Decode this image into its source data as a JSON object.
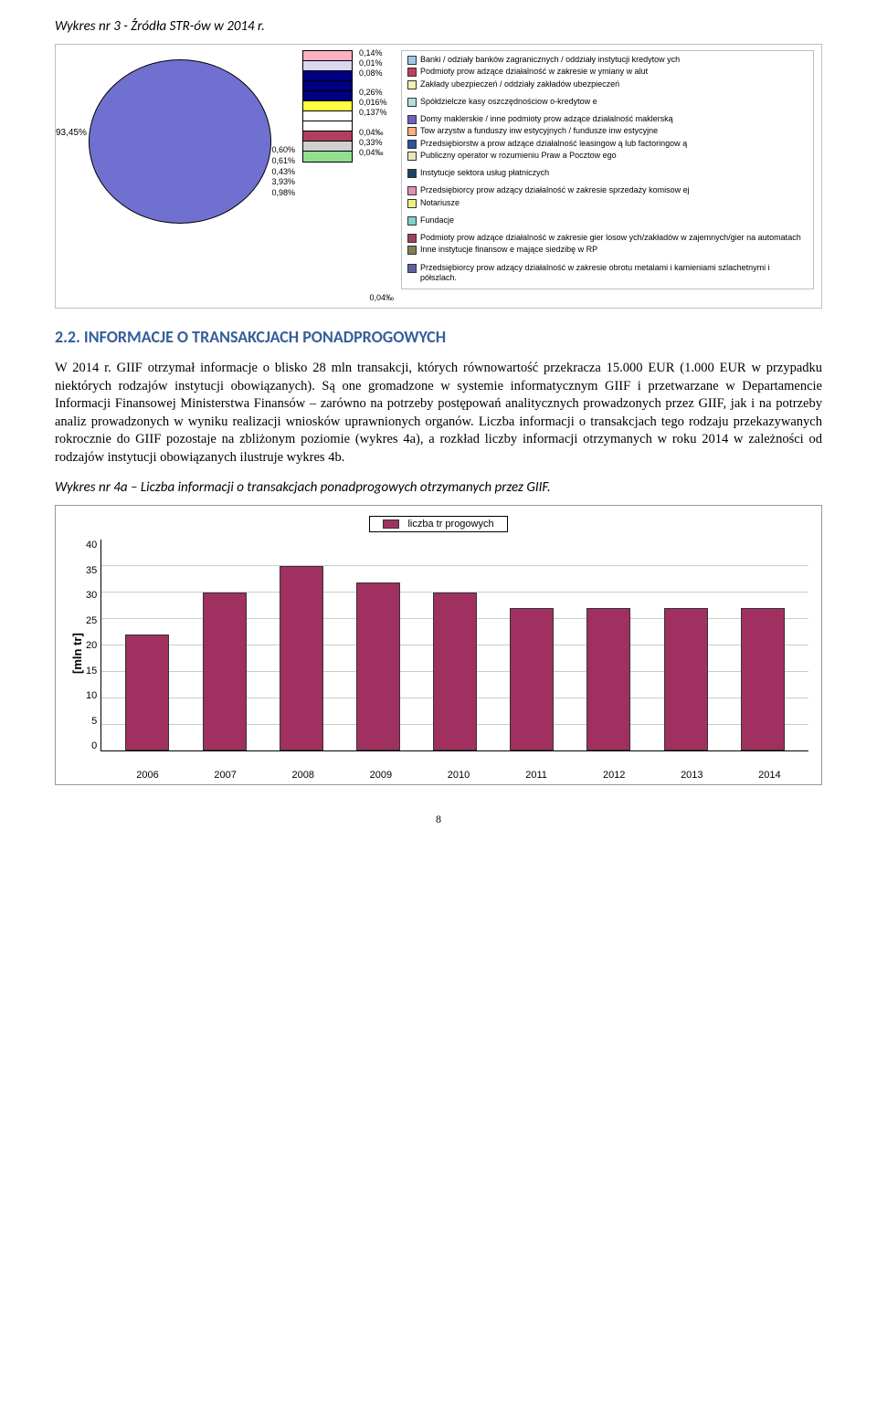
{
  "page_number": "8",
  "chart3": {
    "title": "Wykres nr 3 - Źródła STR-ów w 2014 r.",
    "type": "pie",
    "main_slice_label": "93,45%",
    "main_color": "#7070d0",
    "slice_labels": {
      "l0": "0,60%",
      "l1": "0,61%",
      "l2": "0,43%",
      "l3": "3,93%",
      "l4": "0,98%"
    },
    "callout_labels": {
      "c0": "0,14%",
      "c1": "0,01%",
      "c2": "0,08%",
      "c3": "",
      "c4": "0,26%",
      "c5": "0,016%",
      "c6": "0,137%",
      "c7": "",
      "c8": "0,04‰",
      "c9": "0,33%",
      "c10": "0,04‰"
    },
    "callout_colors": [
      "#ffb0c0",
      "#d8d8f0",
      "#000080",
      "#000080",
      "#000080",
      "#ffff40",
      "#ffffff",
      "#ffffff",
      "#b04060",
      "#d0d0d0",
      "#90e090"
    ],
    "bottom_label": "0,04‰",
    "legend_items": [
      {
        "color": "#a0c8e8",
        "text": "Banki / odziały banków zagranicznych / oddziały instytucji kredytow ych"
      },
      {
        "color": "#c04060",
        "text": "Podmioty prow adzące działalność w zakresie w ymiany w alut"
      },
      {
        "color": "#f0f0b0",
        "text": "Zakłady ubezpieczeń / oddziały zakładów ubezpieczeń"
      },
      {
        "color": "#ffffff",
        "text": ""
      },
      {
        "color": "#b0e0e0",
        "text": "Spółdzielcze kasy oszczędnościow o-kredytow e"
      },
      {
        "color": "#ffffff",
        "text": ""
      },
      {
        "color": "#7060c0",
        "text": "Domy maklerskie / inne podmioty prow adzące działalność maklerską"
      },
      {
        "color": "#ffb080",
        "text": "Tow arzystw a funduszy inw estycyjnych / fundusze inw estycyjne"
      },
      {
        "color": "#3050a0",
        "text": "Przedsiębiorstw a prow adzące działalność leasingow ą lub factoringow ą"
      },
      {
        "color": "#e8e8c0",
        "text": "Publiczny operator w rozumieniu Praw a Pocztow ego"
      },
      {
        "color": "#ffffff",
        "text": ""
      },
      {
        "color": "#204060",
        "text": "Instytucje sektora usług płatniczych"
      },
      {
        "color": "#ffffff",
        "text": ""
      },
      {
        "color": "#e090b0",
        "text": "Przedsiębiorcy prow adzący działalność w zakresie sprzedaży komisow ej"
      },
      {
        "color": "#f0f080",
        "text": "Notariusze"
      },
      {
        "color": "#ffffff",
        "text": ""
      },
      {
        "color": "#80d0d0",
        "text": "Fundacje"
      },
      {
        "color": "#ffffff",
        "text": ""
      },
      {
        "color": "#a04060",
        "text": "Podmioty prow adzące działalność w zakresie gier losow ych/zakładów w zajemnych/gier na automatach"
      },
      {
        "color": "#808050",
        "text": "Inne instytucje finansow e mające siedzibę w RP"
      },
      {
        "color": "#ffffff",
        "text": ""
      },
      {
        "color": "#6060a0",
        "text": "Przedsiębiorcy prow adzący działalność w zakresie obrotu metalami i kamieniami szlachetnymi i półszlach."
      }
    ]
  },
  "section_head": "2.2. INFORMACJE O TRANSAKCJACH PONADPROGOWYCH",
  "body_p1": "W 2014 r. GIIF otrzymał informacje o blisko 28 mln transakcji, których równowartość przekracza 15.000 EUR (1.000 EUR w przypadku niektórych rodzajów instytucji obowiązanych). Są one gromadzone w systemie informatycznym GIIF i przetwarzane w Departamencie Informacji Finansowej Ministerstwa Finansów – zarówno na potrzeby postępowań analitycznych prowadzonych przez GIIF, jak i na potrzeby analiz prowadzonych w wyniku realizacji wniosków uprawnionych organów. Liczba informacji o transakcjach tego rodzaju przekazywanych rokrocznie do GIIF pozostaje na zbliżonym poziomie (wykres 4a), a rozkład liczby informacji otrzymanych w roku 2014 w zależności od rodzajów instytucji obowiązanych ilustruje wykres 4b.",
  "chart4a_title": "Wykres nr 4a – Liczba informacji o transakcjach ponadprogowych otrzymanych przez GIIF.",
  "chart4a": {
    "type": "bar",
    "legend_label": "liczba tr progowych",
    "ylabel": "[mln tr]",
    "ylim": [
      0,
      40
    ],
    "ytick_step": 5,
    "yticks": [
      "40",
      "35",
      "30",
      "25",
      "20",
      "15",
      "10",
      "5",
      "0"
    ],
    "categories": [
      "2006",
      "2007",
      "2008",
      "2009",
      "2010",
      "2011",
      "2012",
      "2013",
      "2014"
    ],
    "values": [
      22,
      30,
      35,
      32,
      30,
      27,
      27,
      27,
      27
    ],
    "bar_color": "#a03060",
    "background_color": "#ffffff",
    "grid_color": "#cccccc"
  }
}
